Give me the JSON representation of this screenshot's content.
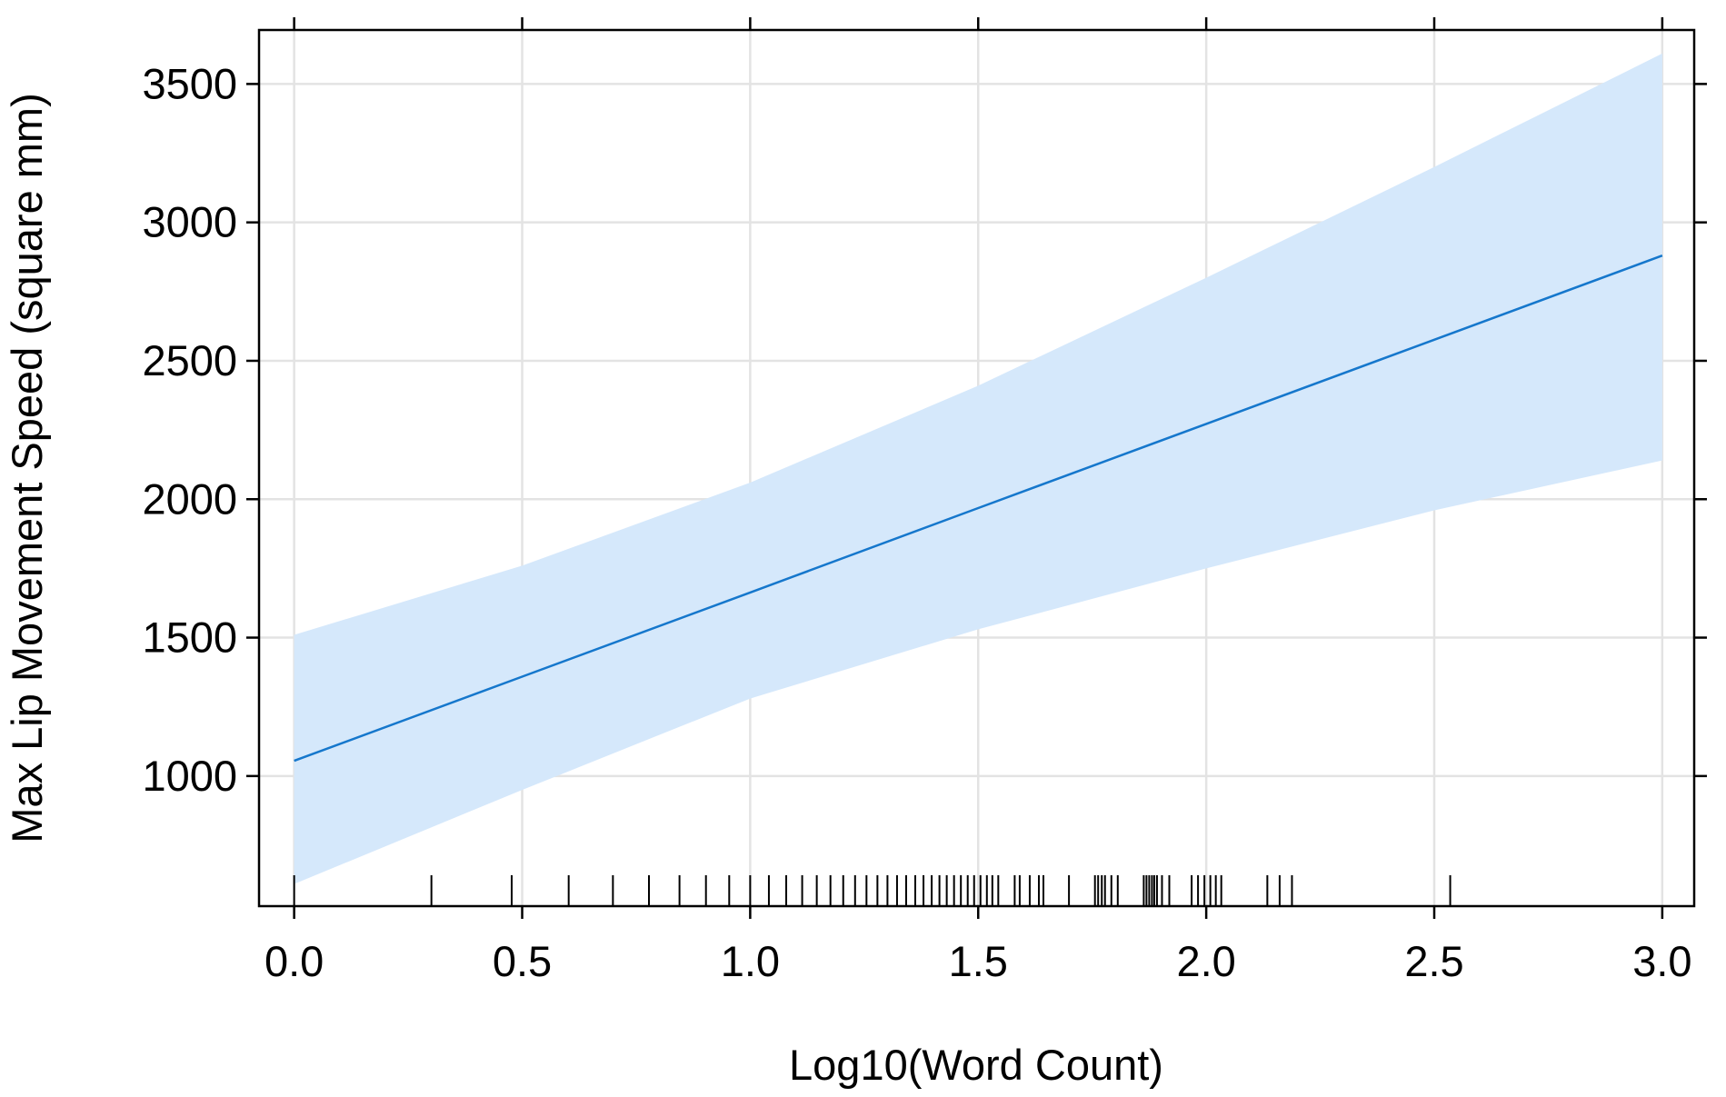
{
  "chart_data": {
    "type": "line",
    "xlabel": "Log10(Word Count)",
    "ylabel": "Max Lip Movement Speed (square mm)",
    "x": [
      0,
      0.5,
      1.0,
      1.5,
      2.0,
      2.5,
      3.0
    ],
    "fit": [
      1055,
      1359,
      1663,
      1968,
      2272,
      2576,
      2880
    ],
    "band_upper": [
      1510,
      1760,
      2060,
      2410,
      2800,
      3200,
      3610
    ],
    "band_lower": [
      610,
      950,
      1280,
      1530,
      1750,
      1960,
      2140
    ],
    "color": "#1577cc",
    "band_color": "#d5e8fb",
    "rug": [
      0,
      0.301,
      0.477,
      0.602,
      0.699,
      0.778,
      0.845,
      0.903,
      0.954,
      1.0,
      1.041,
      1.079,
      1.114,
      1.146,
      1.176,
      1.204,
      1.23,
      1.255,
      1.279,
      1.301,
      1.322,
      1.342,
      1.362,
      1.38,
      1.398,
      1.415,
      1.431,
      1.447,
      1.462,
      1.477,
      1.491,
      1.505,
      1.519,
      1.531,
      1.544,
      1.58,
      1.591,
      1.613,
      1.633,
      1.643,
      1.699,
      1.756,
      1.763,
      1.771,
      1.778,
      1.792,
      1.806,
      1.863,
      1.869,
      1.875,
      1.881,
      1.886,
      1.892,
      1.903,
      1.919,
      1.968,
      1.982,
      1.996,
      2.009,
      2.021,
      2.033,
      2.134,
      2.161,
      2.188,
      2.535
    ],
    "xlim": [
      -0.077,
      3.07
    ],
    "ylim": [
      530,
      3695
    ],
    "xticks": [
      {
        "value": 0,
        "label": "0.0"
      },
      0.5,
      {
        "value": 1,
        "label": "1.0"
      },
      1.5,
      {
        "value": 2,
        "label": "2.0"
      },
      2.5,
      {
        "value": 3,
        "label": "3.0"
      }
    ],
    "yticks": [
      1000,
      1500,
      2000,
      2500,
      3000,
      3500
    ],
    "grid": true
  }
}
